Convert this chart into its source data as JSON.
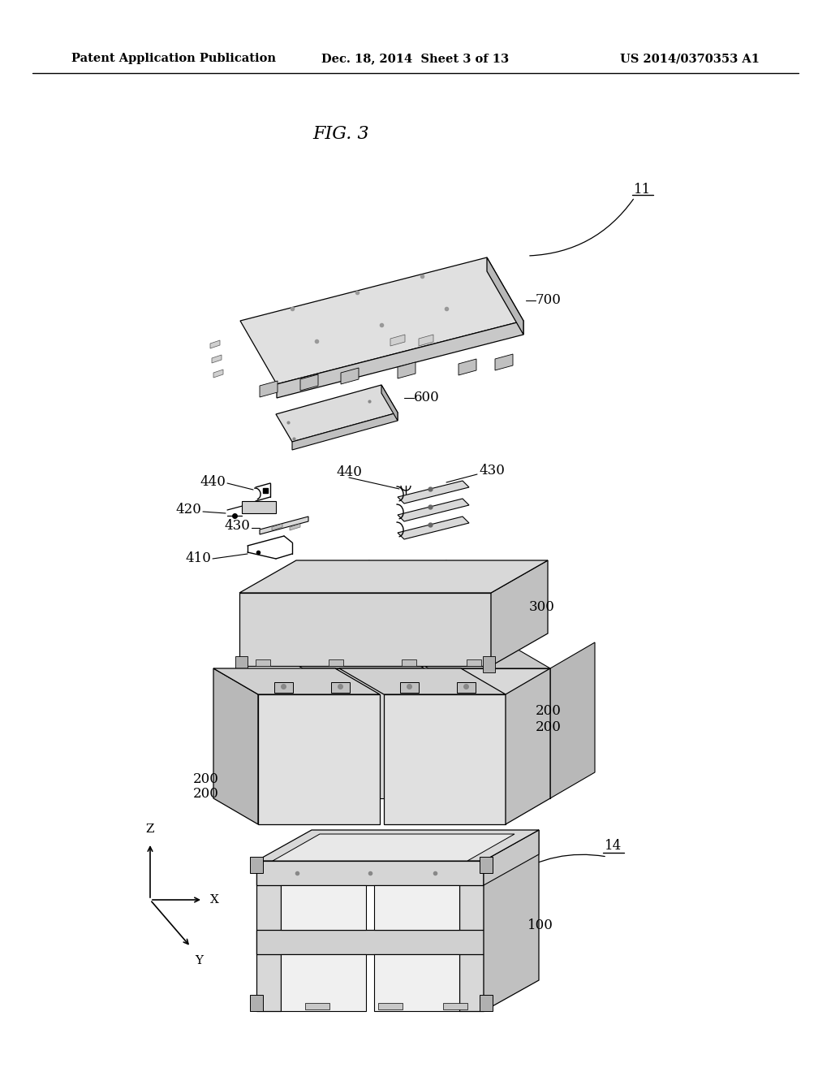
{
  "background_color": "#ffffff",
  "header_left": "Patent Application Publication",
  "header_center": "Dec. 18, 2014  Sheet 3 of 13",
  "header_right": "US 2014/0370353 A1",
  "fig_label": "FIG. 3",
  "header_fontsize": 10.5,
  "label_fontsize": 12,
  "fig_fontsize": 16
}
